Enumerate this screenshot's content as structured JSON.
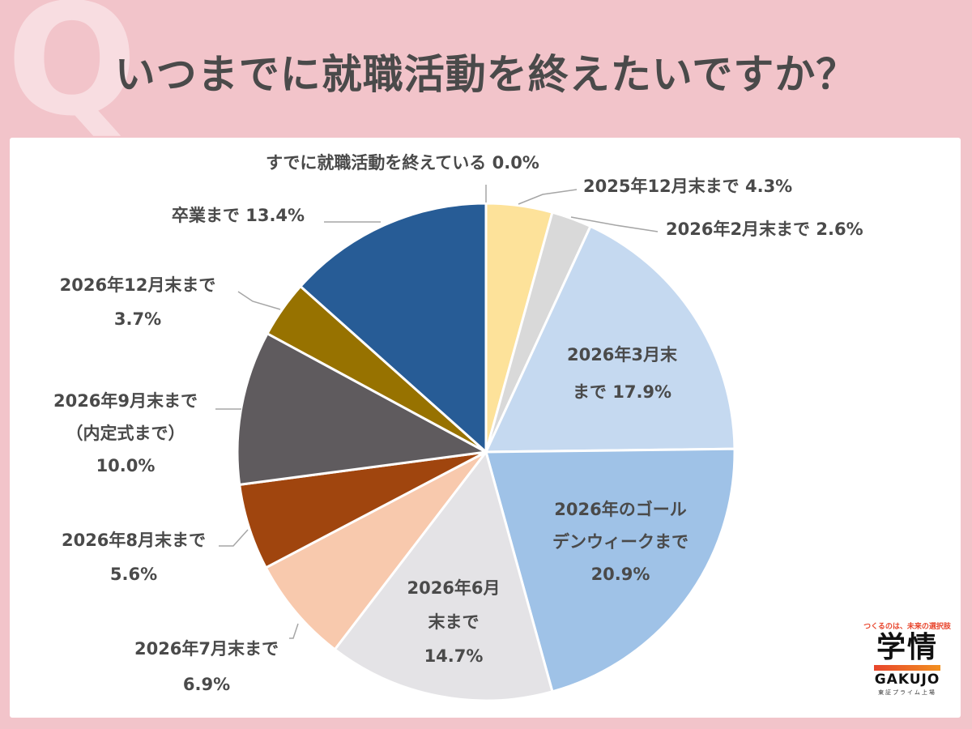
{
  "header": {
    "q_mark": "Q",
    "title": "いつまでに就職活動を終えたいですか？"
  },
  "logo": {
    "tagline": "つくるのは、未来の選択肢",
    "name_kanji": "学情",
    "name_en": "GAKUJO",
    "market": "東証プライム上場"
  },
  "chart_data": {
    "type": "pie",
    "title": "いつまでに就職活動を終えたいですか？",
    "start": "top",
    "direction": "clockwise",
    "slices": [
      {
        "label": "すでに就職活動を終えている",
        "value": 0.0,
        "display": "0.0%",
        "color": "#c9c9c9",
        "label_lines": [
          "すでに就職活動を終えている 0.0%"
        ]
      },
      {
        "label": "2025年12月末まで",
        "value": 4.3,
        "display": "4.3%",
        "color": "#fde29a",
        "label_lines": [
          "2025年12月末まで 4.3%"
        ]
      },
      {
        "label": "2026年2月末まで",
        "value": 2.6,
        "display": "2.6%",
        "color": "#d9d9d9",
        "label_lines": [
          "2026年2月末まで 2.6%"
        ]
      },
      {
        "label": "2026年3月末まで",
        "value": 17.9,
        "display": "17.9%",
        "color": "#c5d9f0",
        "label_lines": [
          "2026年3月末",
          "まで 17.9%"
        ]
      },
      {
        "label": "2026年のゴールデンウィークまで",
        "value": 20.9,
        "display": "20.9%",
        "color": "#9fc2e7",
        "label_lines": [
          "2026年のゴール",
          "デンウィークまで",
          "20.9%"
        ]
      },
      {
        "label": "2026年6月末まで",
        "value": 14.7,
        "display": "14.7%",
        "color": "#e4e3e6",
        "label_lines": [
          "2026年6月",
          "末まで",
          "14.7%"
        ]
      },
      {
        "label": "2026年7月末まで",
        "value": 6.9,
        "display": "6.9%",
        "color": "#f8c9ad",
        "label_lines": [
          "2026年7月末まで",
          "6.9%"
        ]
      },
      {
        "label": "2026年8月末まで",
        "value": 5.6,
        "display": "5.6%",
        "color": "#a0450e",
        "label_lines": [
          "2026年8月末まで",
          "5.6%"
        ]
      },
      {
        "label": "2026年9月末まで（内定式まで）",
        "value": 10.0,
        "display": "10.0%",
        "color": "#5f5b5e",
        "label_lines": [
          "2026年9月末まで",
          "（内定式まで）",
          "10.0%"
        ]
      },
      {
        "label": "2026年12月末まで",
        "value": 3.7,
        "display": "3.7%",
        "color": "#977200",
        "label_lines": [
          "2026年12月末まで",
          "3.7%"
        ]
      },
      {
        "label": "卒業まで",
        "value": 13.4,
        "display": "13.4%",
        "color": "#275c96",
        "label_lines": [
          "卒業まで 13.4%"
        ]
      }
    ]
  }
}
